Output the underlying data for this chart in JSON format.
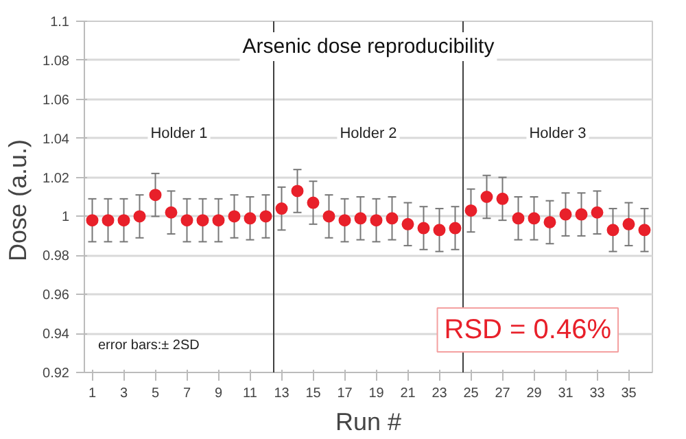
{
  "chart_data": {
    "type": "scatter",
    "title": "Arsenic dose reproducibility",
    "xlabel": "Run #",
    "ylabel": "Dose  (a.u.)",
    "x": [
      1,
      2,
      3,
      4,
      5,
      6,
      7,
      8,
      9,
      10,
      11,
      12,
      13,
      14,
      15,
      16,
      17,
      18,
      19,
      20,
      21,
      22,
      23,
      24,
      25,
      26,
      27,
      28,
      29,
      30,
      31,
      32,
      33,
      34,
      35,
      36
    ],
    "series": [
      {
        "color": "#e8202a",
        "values": [
          0.998,
          0.998,
          0.998,
          1.0,
          1.011,
          1.002,
          0.998,
          0.998,
          0.998,
          1.0,
          0.999,
          1.0,
          1.004,
          1.013,
          1.007,
          1.0,
          0.998,
          0.999,
          0.998,
          0.999,
          0.996,
          0.994,
          0.993,
          0.994,
          1.003,
          1.01,
          1.009,
          0.999,
          0.999,
          0.997,
          1.001,
          1.001,
          1.002,
          0.993,
          0.996,
          0.993
        ],
        "errors": [
          0.011,
          0.011,
          0.011,
          0.011,
          0.011,
          0.011,
          0.011,
          0.011,
          0.011,
          0.011,
          0.011,
          0.011,
          0.011,
          0.011,
          0.011,
          0.011,
          0.011,
          0.011,
          0.011,
          0.011,
          0.011,
          0.011,
          0.011,
          0.011,
          0.011,
          0.011,
          0.011,
          0.011,
          0.011,
          0.011,
          0.011,
          0.011,
          0.011,
          0.011,
          0.011,
          0.011
        ]
      }
    ],
    "xlim": [
      0.5,
      36.5
    ],
    "ylim": [
      0.92,
      1.1
    ],
    "xticks": [
      1,
      3,
      5,
      7,
      9,
      11,
      13,
      15,
      17,
      19,
      21,
      23,
      25,
      27,
      29,
      31,
      33,
      35
    ],
    "yticks": [
      {
        "value": 0.92,
        "label": "0.92"
      },
      {
        "value": 0.94,
        "label": "0.94"
      },
      {
        "value": 0.96,
        "label": "0.96"
      },
      {
        "value": 0.98,
        "label": "0.98"
      },
      {
        "value": 1,
        "label": "1"
      },
      {
        "value": 1.02,
        "label": "1.02"
      },
      {
        "value": 1.04,
        "label": "1.04"
      },
      {
        "value": 1.06,
        "label": "1.06"
      },
      {
        "value": 1.08,
        "label": "1.08"
      },
      {
        "value": 1.1,
        "label": "1.1"
      }
    ],
    "grid": "y",
    "marker": "circle",
    "ref_lines": [
      {
        "axis": "x",
        "value": 12.5,
        "color": "#404040"
      },
      {
        "axis": "x",
        "value": 24.5,
        "color": "#404040"
      }
    ],
    "annotations": [
      "Holder 1",
      "Holder 2",
      "Holder 3",
      "error bars:± 2SD",
      "RSD = 0.46%"
    ]
  }
}
